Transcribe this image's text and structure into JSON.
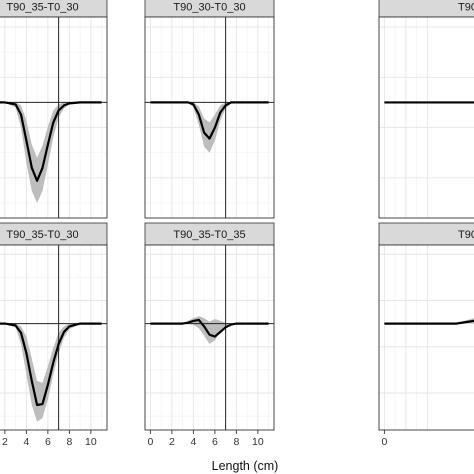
{
  "chart_data": {
    "type": "line",
    "xlabel": "Length (cm)",
    "ylabel": "",
    "xlim": [
      -0.5,
      11.5
    ],
    "x_ticks": [
      0,
      2,
      4,
      6,
      8,
      10
    ],
    "x_tick_labels": [
      "0",
      "2",
      "4",
      "6",
      "8",
      "10"
    ],
    "reference_x": 7,
    "reference_y": 0,
    "ylim": [
      -1.15,
      0.85
    ],
    "grid": true,
    "colors": {
      "line": "#000000",
      "ribbon": "#bdbdbd",
      "strip": "#d9d9d9",
      "grid_major": "#e6e6e6",
      "grid_minor": "#f3f3f3",
      "panel_border": "#333333"
    },
    "x": [
      0,
      1,
      2,
      3,
      3.5,
      4,
      4.5,
      5,
      5.5,
      6,
      6.5,
      7,
      7.5,
      8,
      9,
      10,
      11
    ],
    "panels": [
      {
        "label": "T90_35-T0_30",
        "lower": [
          0,
          0,
          0,
          -0.05,
          -0.25,
          -0.6,
          -0.88,
          -1.0,
          -0.88,
          -0.62,
          -0.35,
          -0.15,
          -0.06,
          -0.02,
          0,
          0,
          0
        ],
        "mean": [
          0,
          0,
          0,
          -0.02,
          -0.12,
          -0.38,
          -0.65,
          -0.78,
          -0.65,
          -0.42,
          -0.2,
          -0.08,
          -0.03,
          -0.01,
          0,
          0,
          0
        ],
        "upper": [
          0,
          0,
          0,
          0,
          -0.03,
          -0.18,
          -0.42,
          -0.55,
          -0.43,
          -0.24,
          -0.08,
          -0.02,
          0,
          0,
          0,
          0,
          0
        ]
      },
      {
        "label": "T90_30-T0_30",
        "lower": [
          0,
          0,
          0,
          0,
          0,
          -0.05,
          -0.22,
          -0.44,
          -0.5,
          -0.38,
          -0.18,
          -0.06,
          -0.01,
          0,
          0,
          0,
          0
        ],
        "mean": [
          0,
          0,
          0,
          0,
          0,
          -0.02,
          -0.12,
          -0.3,
          -0.36,
          -0.25,
          -0.1,
          -0.03,
          0,
          0,
          0,
          0,
          0
        ],
        "upper": [
          0,
          0,
          0,
          0,
          0,
          0,
          -0.04,
          -0.16,
          -0.2,
          -0.12,
          -0.03,
          0,
          0,
          0,
          0,
          0,
          0
        ]
      },
      {
        "label": "T90_35-T0_30",
        "lower": [
          0,
          0,
          0,
          -0.04,
          -0.22,
          -0.55,
          -0.88,
          -1.06,
          -1.02,
          -0.82,
          -0.55,
          -0.32,
          -0.15,
          -0.06,
          0,
          0,
          0
        ],
        "mean": [
          0,
          0,
          0,
          -0.02,
          -0.1,
          -0.32,
          -0.62,
          -0.88,
          -0.87,
          -0.66,
          -0.42,
          -0.22,
          -0.09,
          -0.03,
          0,
          0,
          0
        ],
        "upper": [
          0,
          0,
          0,
          0,
          -0.03,
          -0.14,
          -0.38,
          -0.62,
          -0.64,
          -0.46,
          -0.26,
          -0.1,
          -0.03,
          0,
          0,
          0,
          0
        ]
      },
      {
        "label": "T90_35-T0_35",
        "lower": [
          0,
          0,
          0,
          0,
          0,
          -0.01,
          -0.05,
          -0.13,
          -0.22,
          -0.18,
          -0.09,
          -0.03,
          -0.01,
          0,
          0,
          0,
          0
        ],
        "mean": [
          0,
          0,
          0,
          0,
          0.01,
          0.03,
          0.04,
          -0.03,
          -0.12,
          -0.14,
          -0.09,
          -0.04,
          -0.01,
          0,
          0,
          0,
          0
        ],
        "upper": [
          0,
          0,
          0,
          0,
          0.03,
          0.06,
          0.08,
          0.06,
          0.02,
          0.05,
          0.03,
          0.01,
          0,
          0,
          0,
          0,
          0
        ]
      }
    ],
    "partial_panels": [
      {
        "label": "T90",
        "mean_y": 0,
        "upper_y": 0,
        "lower_y": 0
      },
      {
        "label": "T90",
        "mean_y": 0.03,
        "upper_y": 0.06,
        "lower_y": 0
      }
    ]
  }
}
